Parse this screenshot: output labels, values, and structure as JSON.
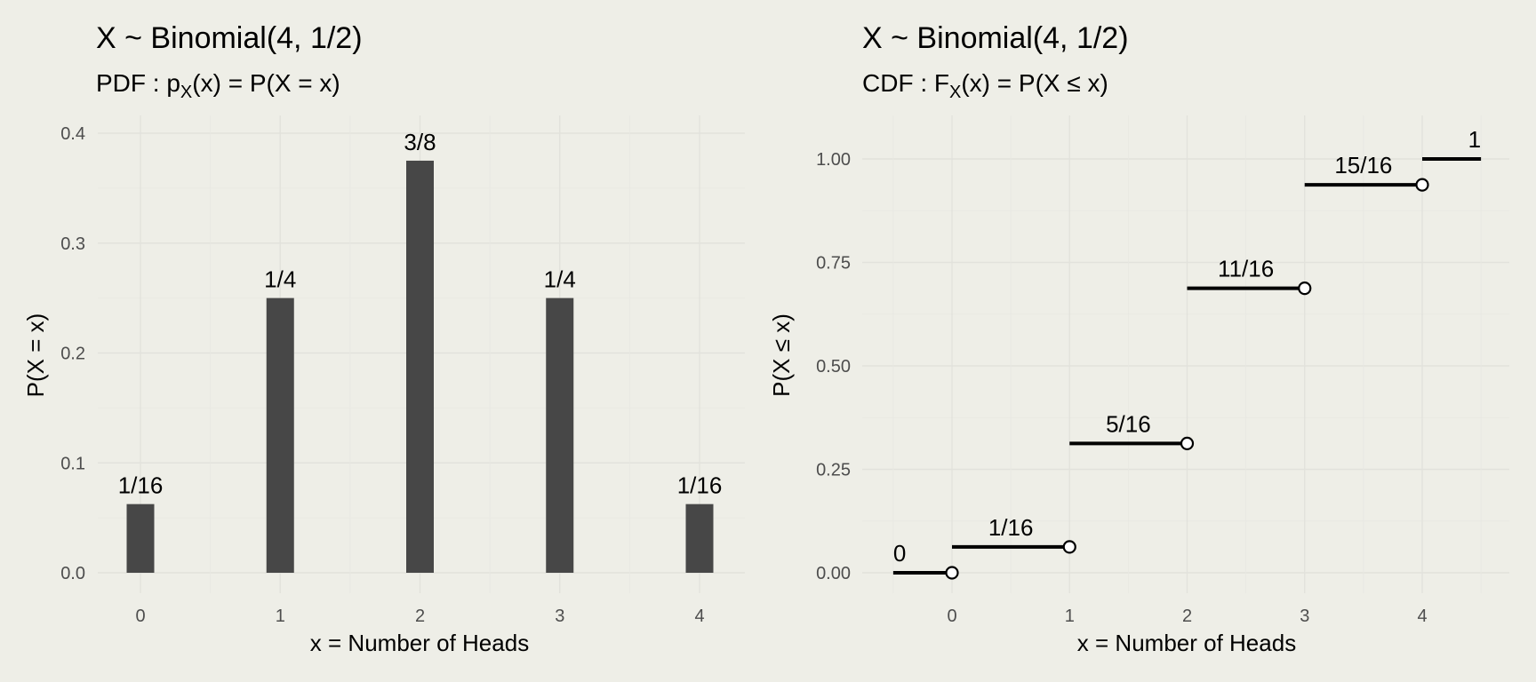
{
  "chart_data": [
    {
      "type": "bar",
      "title": "X ~ Binomial(4, 1/2)",
      "subtitle": {
        "prefix": "PDF : p",
        "sub": "X",
        "suffix": "(x) = P(X = x)"
      },
      "xlabel": "x = Number of Heads",
      "ylabel": "P(X = x)",
      "categories": [
        "0",
        "1",
        "2",
        "3",
        "4"
      ],
      "values": [
        0.0625,
        0.25,
        0.375,
        0.25,
        0.0625
      ],
      "labels": [
        "1/16",
        "1/4",
        "3/8",
        "1/4",
        "1/16"
      ],
      "ylim": [
        0,
        0.4
      ],
      "yticks": [
        "0.0",
        "0.1",
        "0.2",
        "0.3",
        "0.4"
      ],
      "grid": true,
      "bar_color": "#474747"
    },
    {
      "type": "line",
      "style": "step",
      "title": "X ~ Binomial(4, 1/2)",
      "subtitle": {
        "prefix": "CDF : F",
        "sub": "X",
        "suffix": "(x) = P(X ≤ x)"
      },
      "xlabel": "x = Number of Heads",
      "ylabel": "P(X ≤ x)",
      "xticks": [
        "0",
        "1",
        "2",
        "3",
        "4"
      ],
      "xlim": [
        -0.5,
        4.5
      ],
      "yticks": [
        "0.00",
        "0.25",
        "0.50",
        "0.75",
        "1.00"
      ],
      "ylim": [
        0,
        1
      ],
      "grid": true,
      "segments": [
        {
          "x_start": -0.5,
          "x_end": 0,
          "y": 0,
          "label": "0",
          "open_end": true
        },
        {
          "x_start": 0,
          "x_end": 1,
          "y": 0.0625,
          "label": "1/16",
          "open_end": true
        },
        {
          "x_start": 1,
          "x_end": 2,
          "y": 0.3125,
          "label": "5/16",
          "open_end": true
        },
        {
          "x_start": 2,
          "x_end": 3,
          "y": 0.6875,
          "label": "11/16",
          "open_end": true
        },
        {
          "x_start": 3,
          "x_end": 4,
          "y": 0.9375,
          "label": "15/16",
          "open_end": true
        },
        {
          "x_start": 4,
          "x_end": 4.5,
          "y": 1,
          "label": "1",
          "open_end": false
        }
      ]
    }
  ]
}
